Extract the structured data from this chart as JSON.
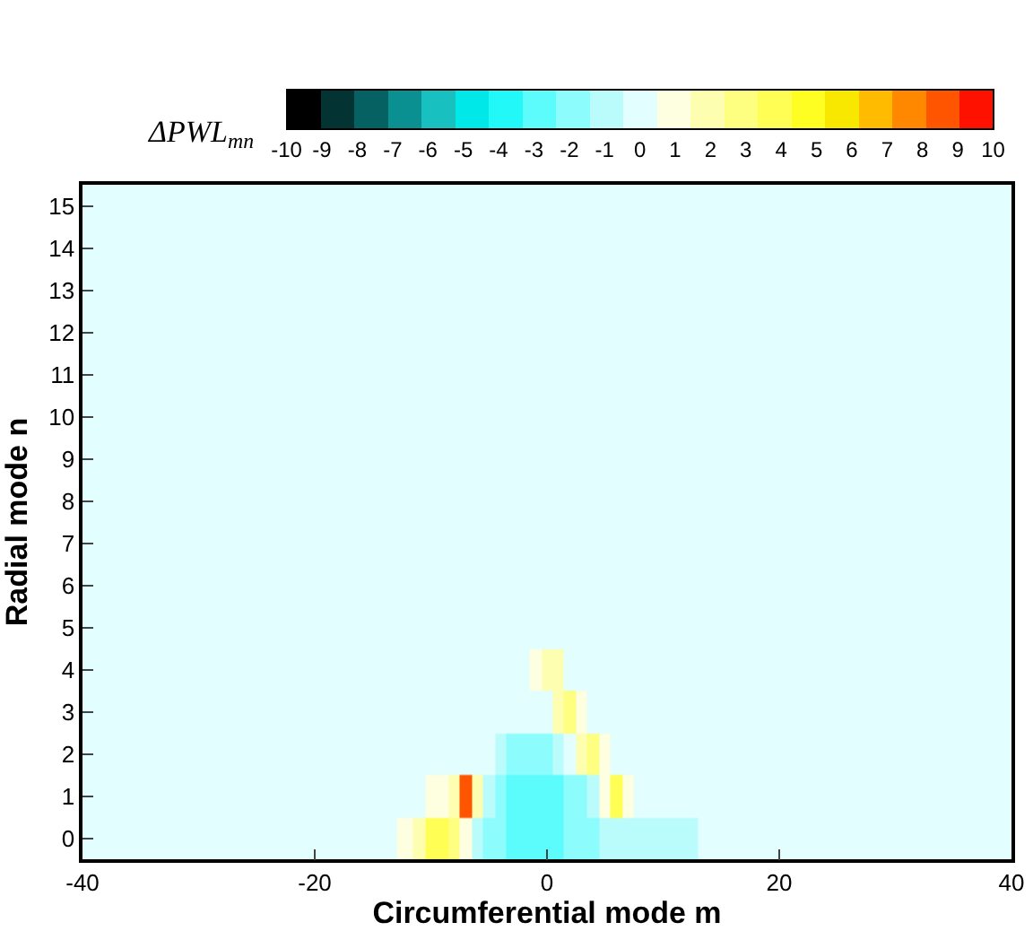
{
  "chart_data": {
    "type": "heatmap",
    "xlabel": "Circumferential mode m",
    "ylabel": "Radial mode n",
    "clabel": "ΔPWL$_{mn}$",
    "x": [
      -40,
      -20,
      -14,
      -12,
      -11,
      -10,
      -9,
      -8,
      -7,
      -6,
      -5,
      -4,
      -3,
      -2,
      -1,
      0,
      1,
      2,
      3,
      4,
      5,
      6,
      7,
      8,
      9,
      10,
      12,
      14,
      20,
      40
    ],
    "y_categories": [
      "15",
      "14",
      "13",
      "12",
      "11",
      "10",
      "9",
      "8",
      "7",
      "6",
      "5",
      "4",
      "3",
      "2",
      "1",
      "0"
    ],
    "cells": [
      [
        0,
        0,
        0,
        0,
        0,
        0,
        0,
        0,
        0,
        0,
        0,
        0,
        0,
        0,
        0,
        0,
        0,
        0,
        0,
        0,
        0,
        0,
        0,
        0,
        0,
        0,
        0,
        0,
        0,
        0
      ],
      [
        0,
        0,
        0,
        0,
        0,
        0,
        0,
        0,
        0,
        0,
        0,
        0,
        0,
        0,
        0,
        0,
        0,
        0,
        0,
        0,
        0,
        0,
        0,
        0,
        0,
        0,
        0,
        0,
        0,
        0
      ],
      [
        0,
        0,
        0,
        0,
        0,
        0,
        0,
        0,
        0,
        0,
        0,
        0,
        0,
        0,
        0,
        0,
        0,
        0,
        0,
        0,
        0,
        0,
        0,
        0,
        0,
        0,
        0,
        0,
        0,
        0
      ],
      [
        0,
        0,
        0,
        0,
        0,
        0,
        0,
        0,
        0,
        0,
        0,
        0,
        0,
        0,
        0,
        0,
        0,
        0,
        0,
        0,
        0,
        0,
        0,
        0,
        0,
        0,
        0,
        0,
        0,
        0
      ],
      [
        0,
        0,
        0,
        0,
        0,
        0,
        0,
        0,
        0,
        0,
        0,
        0,
        0,
        0,
        0,
        0,
        0,
        0,
        0,
        0,
        0,
        0,
        0,
        0,
        0,
        0,
        0,
        0,
        0,
        0
      ],
      [
        0,
        0,
        0,
        0,
        0,
        0,
        0,
        0,
        0,
        0,
        0,
        0,
        0,
        0,
        0,
        0,
        0,
        0,
        0,
        0,
        0,
        0,
        0,
        0,
        0,
        0,
        0,
        0,
        0,
        0
      ],
      [
        0,
        0,
        0,
        0,
        0,
        0,
        0,
        0,
        0,
        0,
        0,
        0,
        0,
        0,
        0,
        0,
        0,
        0,
        0,
        0,
        0,
        0,
        0,
        0,
        0,
        0,
        0,
        0,
        0,
        0
      ],
      [
        0,
        0,
        0,
        0,
        0,
        0,
        0,
        0,
        0,
        0,
        0,
        0,
        0,
        0,
        0,
        0,
        0,
        0,
        0,
        0,
        0,
        0,
        0,
        0,
        0,
        0,
        0,
        0,
        0,
        0
      ],
      [
        0,
        0,
        0,
        0,
        0,
        0,
        0,
        0,
        0,
        0,
        0,
        0,
        0,
        0,
        0,
        0,
        0,
        0,
        0,
        0,
        0,
        0,
        0,
        0,
        0,
        0,
        0,
        0,
        0,
        0
      ],
      [
        0,
        0,
        0,
        0,
        0,
        0,
        0,
        0,
        0,
        0,
        0,
        0,
        0,
        0,
        0,
        0,
        0,
        0,
        0,
        0,
        0,
        0,
        0,
        0,
        0,
        0,
        0,
        0,
        0,
        0
      ],
      [
        0,
        0,
        0,
        0,
        0,
        0,
        0,
        0,
        0,
        0,
        0,
        0,
        0,
        0,
        0,
        0,
        0,
        0,
        0,
        0,
        0,
        0,
        0,
        0,
        0,
        0,
        0,
        0,
        0,
        0
      ],
      [
        0,
        0,
        0,
        0,
        0,
        0,
        0,
        0,
        0,
        0,
        0,
        0,
        0,
        0,
        1,
        2,
        1.5,
        0,
        0,
        0,
        0,
        0,
        0,
        0,
        0,
        0,
        0,
        0,
        0,
        0
      ],
      [
        0,
        0,
        0,
        0,
        0,
        0,
        0,
        0,
        0,
        0,
        0,
        0,
        0,
        0,
        0,
        0,
        2,
        3,
        1,
        0,
        0,
        0,
        0,
        0,
        0,
        0,
        0,
        0,
        0,
        0
      ],
      [
        0,
        0,
        0,
        0,
        0,
        0,
        0,
        0,
        0,
        0,
        0,
        -1.2,
        -1.5,
        -1.8,
        -2,
        -2,
        -1.2,
        0,
        1.5,
        3,
        1,
        0,
        0,
        0,
        0,
        0,
        0,
        0,
        0,
        0
      ],
      [
        0,
        0,
        0,
        0,
        0,
        1,
        1,
        1.5,
        9,
        2,
        -1.2,
        -2,
        -2.5,
        -2.8,
        -3,
        -3,
        -2.8,
        -2.2,
        -1.5,
        -1,
        1,
        3.5,
        1,
        0,
        0,
        0,
        0,
        0,
        0,
        0
      ],
      [
        0,
        0,
        0,
        1,
        2,
        3.5,
        4,
        2.5,
        1,
        -1,
        -1.5,
        -2.2,
        -2.8,
        -3,
        -3.2,
        -3.2,
        -2.8,
        -2.2,
        -1.8,
        -1.5,
        -1.2,
        -1,
        -1,
        -1.2,
        -1.2,
        -1.2,
        -1.1,
        0,
        0,
        0
      ]
    ],
    "colors": [
      "#000000",
      "#043333",
      "#066262",
      "#0a9090",
      "#18c0c0",
      "#00e8e8",
      "#22f8f8",
      "#5cfcfc",
      "#8cfcfc",
      "#bafcfc",
      "#e2fefe",
      "#fefee0",
      "#fefeb0",
      "#fefe80",
      "#fefe55",
      "#fefe22",
      "#f8e800",
      "#ffbb00",
      "#ff8800",
      "#ff5500",
      "#ff1100"
    ],
    "clim": [
      -10,
      10
    ],
    "cticks": [
      -10,
      -9,
      -8,
      -7,
      -6,
      -5,
      -4,
      -3,
      -2,
      -1,
      0,
      1,
      2,
      3,
      4,
      5,
      6,
      7,
      8,
      9,
      10
    ],
    "xlim": [
      -40,
      40
    ],
    "xticks": [
      -40,
      -20,
      0,
      20,
      40
    ]
  }
}
